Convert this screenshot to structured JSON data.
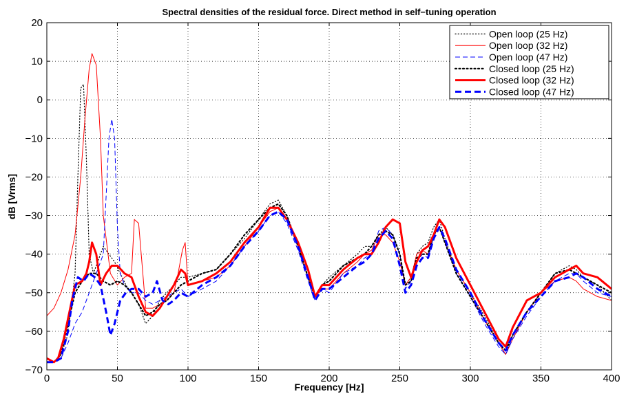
{
  "chart_data": {
    "type": "line",
    "title": "Spectral densities of the residual force. Direct method in self−tuning operation",
    "xlabel": "Frequency [Hz]",
    "ylabel": "dB [Vrms]",
    "xlim": [
      0,
      400
    ],
    "ylim": [
      -70,
      20
    ],
    "xticks": [
      0,
      50,
      100,
      150,
      200,
      250,
      300,
      350,
      400
    ],
    "yticks": [
      -70,
      -60,
      -50,
      -40,
      -30,
      -20,
      -10,
      0,
      10,
      20
    ],
    "xtick_labels": [
      "0",
      "50",
      "100",
      "150",
      "200",
      "250",
      "300",
      "350",
      "400"
    ],
    "ytick_labels": [
      "−70",
      "−60",
      "−50",
      "−40",
      "−30",
      "−20",
      "−10",
      "0",
      "10",
      "20"
    ],
    "grid": true,
    "legend_position": "top-right",
    "series": [
      {
        "name": "Open loop (25 Hz)",
        "color": "#000000",
        "style": "dotted",
        "width": 1.2,
        "x": [
          0,
          5,
          10,
          14,
          17,
          20,
          22,
          24,
          26,
          28,
          30,
          33,
          36,
          40,
          44,
          48,
          52,
          56,
          60,
          65,
          70,
          75,
          80,
          90,
          95,
          100,
          110,
          120,
          130,
          140,
          150,
          158,
          164,
          170,
          178,
          185,
          190,
          195,
          200,
          210,
          220,
          225,
          230,
          235,
          240,
          245,
          250,
          254,
          258,
          262,
          266,
          270,
          274,
          278,
          282,
          290,
          300,
          310,
          320,
          325,
          330,
          340,
          350,
          360,
          370,
          375,
          380,
          390,
          400
        ],
        "y": [
          -68,
          -68,
          -66,
          -62,
          -55,
          -45,
          -20,
          3,
          4,
          -15,
          -40,
          -45,
          -42,
          -38,
          -40,
          -42,
          -45,
          -48,
          -50,
          -53,
          -58,
          -56,
          -52,
          -48,
          -46,
          -46,
          -45,
          -44,
          -40,
          -36,
          -31,
          -27,
          -26,
          -30,
          -38,
          -46,
          -51,
          -48,
          -46,
          -43,
          -40,
          -38,
          -38,
          -35,
          -33,
          -35,
          -40,
          -48,
          -46,
          -40,
          -38,
          -37,
          -33,
          -31,
          -36,
          -44,
          -50,
          -56,
          -63,
          -66,
          -61,
          -55,
          -50,
          -45,
          -43,
          -44,
          -46,
          -48,
          -52
        ]
      },
      {
        "name": "Open loop (32 Hz)",
        "color": "#ff0000",
        "style": "solid",
        "width": 1.0,
        "x": [
          0,
          5,
          10,
          15,
          20,
          24,
          27,
          30,
          32,
          35,
          38,
          40,
          45,
          50,
          55,
          60,
          62,
          65,
          68,
          70,
          75,
          80,
          85,
          90,
          93,
          96,
          98,
          100,
          110,
          120,
          130,
          140,
          150,
          158,
          164,
          170,
          178,
          185,
          190,
          195,
          200,
          210,
          220,
          225,
          230,
          235,
          240,
          245,
          250,
          254,
          258,
          262,
          266,
          270,
          274,
          278,
          282,
          290,
          300,
          310,
          320,
          325,
          330,
          340,
          350,
          360,
          370,
          375,
          380,
          390,
          400
        ],
        "y": [
          -56,
          -54,
          -50,
          -44,
          -35,
          -20,
          -5,
          8,
          12,
          9,
          -10,
          -30,
          -45,
          -48,
          -46,
          -45,
          -31,
          -32,
          -45,
          -54,
          -54,
          -53,
          -52,
          -50,
          -45,
          -39,
          -37,
          -48,
          -47,
          -46,
          -43,
          -38,
          -33,
          -29,
          -28,
          -31,
          -38,
          -46,
          -51,
          -49,
          -49,
          -45,
          -42,
          -40,
          -39,
          -35,
          -35,
          -37,
          -42,
          -48,
          -46,
          -40,
          -39,
          -40,
          -35,
          -33,
          -37,
          -44,
          -50,
          -57,
          -63,
          -66,
          -62,
          -55,
          -50,
          -47,
          -46,
          -47,
          -49,
          -51,
          -52
        ]
      },
      {
        "name": "Open loop (47 Hz)",
        "color": "#0000ff",
        "style": "dashed",
        "width": 1.0,
        "x": [
          0,
          5,
          10,
          15,
          20,
          25,
          30,
          35,
          40,
          44,
          46,
          48,
          50,
          52,
          55,
          60,
          65,
          70,
          75,
          80,
          90,
          95,
          100,
          110,
          120,
          130,
          140,
          150,
          158,
          164,
          170,
          178,
          185,
          190,
          195,
          200,
          210,
          220,
          225,
          230,
          235,
          240,
          245,
          250,
          254,
          258,
          262,
          266,
          270,
          274,
          278,
          282,
          290,
          300,
          310,
          320,
          325,
          330,
          340,
          350,
          360,
          370,
          375,
          380,
          390,
          400
        ],
        "y": [
          -68,
          -68,
          -67,
          -63,
          -58,
          -55,
          -50,
          -45,
          -40,
          -10,
          -5,
          -10,
          -33,
          -45,
          -48,
          -50,
          -50,
          -52,
          -53,
          -52,
          -50,
          -49,
          -51,
          -49,
          -47,
          -43,
          -38,
          -34,
          -30,
          -29,
          -32,
          -39,
          -47,
          -52,
          -49,
          -50,
          -45,
          -43,
          -41,
          -40,
          -34,
          -33,
          -35,
          -40,
          -49,
          -47,
          -42,
          -40,
          -41,
          -36,
          -33,
          -37,
          -45,
          -51,
          -58,
          -64,
          -66,
          -62,
          -56,
          -51,
          -47,
          -45,
          -45,
          -47,
          -50,
          -51
        ]
      },
      {
        "name": "Closed loop (25 Hz)",
        "color": "#000000",
        "style": "dotted",
        "width": 2.2,
        "x": [
          0,
          5,
          10,
          15,
          20,
          25,
          30,
          35,
          40,
          45,
          50,
          55,
          60,
          65,
          70,
          75,
          80,
          85,
          90,
          95,
          100,
          110,
          120,
          130,
          140,
          150,
          158,
          164,
          170,
          178,
          185,
          190,
          195,
          200,
          210,
          220,
          225,
          230,
          235,
          240,
          245,
          250,
          254,
          258,
          262,
          266,
          270,
          274,
          278,
          282,
          290,
          300,
          310,
          320,
          325,
          330,
          340,
          350,
          360,
          370,
          375,
          380,
          390,
          400
        ],
        "y": [
          -68,
          -68,
          -66,
          -58,
          -50,
          -47,
          -45,
          -45,
          -47,
          -48,
          -47,
          -48,
          -50,
          -53,
          -56,
          -55,
          -53,
          -52,
          -50,
          -48,
          -47,
          -45,
          -44,
          -40,
          -35,
          -31,
          -28,
          -27,
          -30,
          -38,
          -46,
          -51,
          -48,
          -47,
          -43,
          -41,
          -40,
          -38,
          -35,
          -34,
          -35,
          -40,
          -48,
          -47,
          -41,
          -40,
          -40,
          -35,
          -33,
          -37,
          -45,
          -51,
          -57,
          -63,
          -65,
          -61,
          -55,
          -50,
          -45,
          -44,
          -45,
          -46,
          -48,
          -50
        ]
      },
      {
        "name": "Closed loop (32 Hz)",
        "color": "#ff0000",
        "style": "solid",
        "width": 3.0,
        "x": [
          0,
          5,
          8,
          12,
          16,
          20,
          25,
          28,
          30,
          32,
          35,
          38,
          42,
          46,
          50,
          55,
          60,
          65,
          70,
          75,
          80,
          85,
          90,
          95,
          98,
          100,
          110,
          120,
          130,
          140,
          150,
          158,
          164,
          170,
          178,
          185,
          190,
          195,
          200,
          210,
          220,
          225,
          230,
          235,
          240,
          245,
          250,
          254,
          258,
          262,
          266,
          270,
          274,
          278,
          282,
          290,
          300,
          310,
          320,
          325,
          330,
          340,
          350,
          360,
          370,
          375,
          380,
          390,
          400
        ],
        "y": [
          -67,
          -68,
          -67,
          -62,
          -55,
          -48,
          -47,
          -45,
          -42,
          -37,
          -40,
          -48,
          -45,
          -43,
          -43,
          -45,
          -46,
          -51,
          -55,
          -56,
          -54,
          -51,
          -48,
          -44,
          -45,
          -48,
          -47,
          -45,
          -42,
          -37,
          -33,
          -28,
          -28,
          -31,
          -37,
          -44,
          -51,
          -48,
          -48,
          -44,
          -41,
          -40,
          -40,
          -37,
          -33,
          -31,
          -32,
          -42,
          -46,
          -42,
          -39,
          -38,
          -35,
          -31,
          -33,
          -41,
          -48,
          -55,
          -62,
          -64,
          -59,
          -52,
          -50,
          -46,
          -44,
          -43,
          -45,
          -46,
          -49
        ]
      },
      {
        "name": "Closed loop (47 Hz)",
        "color": "#0000ff",
        "style": "dashed",
        "width": 3.0,
        "x": [
          0,
          5,
          10,
          15,
          18,
          22,
          26,
          30,
          34,
          38,
          42,
          45,
          48,
          52,
          56,
          60,
          65,
          70,
          75,
          78,
          82,
          86,
          90,
          95,
          100,
          110,
          120,
          130,
          140,
          150,
          158,
          164,
          170,
          178,
          185,
          190,
          195,
          200,
          210,
          220,
          225,
          230,
          235,
          240,
          245,
          250,
          254,
          258,
          262,
          266,
          270,
          274,
          278,
          282,
          290,
          300,
          310,
          320,
          325,
          330,
          340,
          350,
          360,
          370,
          375,
          380,
          390,
          400
        ],
        "y": [
          -68,
          -68,
          -67,
          -60,
          -52,
          -46,
          -47,
          -45,
          -46,
          -48,
          -55,
          -61,
          -58,
          -52,
          -50,
          -49,
          -49,
          -51,
          -50,
          -47,
          -52,
          -53,
          -52,
          -50,
          -51,
          -48,
          -46,
          -43,
          -38,
          -34,
          -30,
          -29,
          -31,
          -38,
          -46,
          -52,
          -49,
          -49,
          -46,
          -43,
          -42,
          -40,
          -36,
          -34,
          -36,
          -43,
          -50,
          -48,
          -43,
          -41,
          -41,
          -36,
          -33,
          -36,
          -44,
          -50,
          -57,
          -63,
          -65,
          -61,
          -55,
          -51,
          -47,
          -46,
          -45,
          -46,
          -49,
          -51
        ]
      }
    ]
  }
}
